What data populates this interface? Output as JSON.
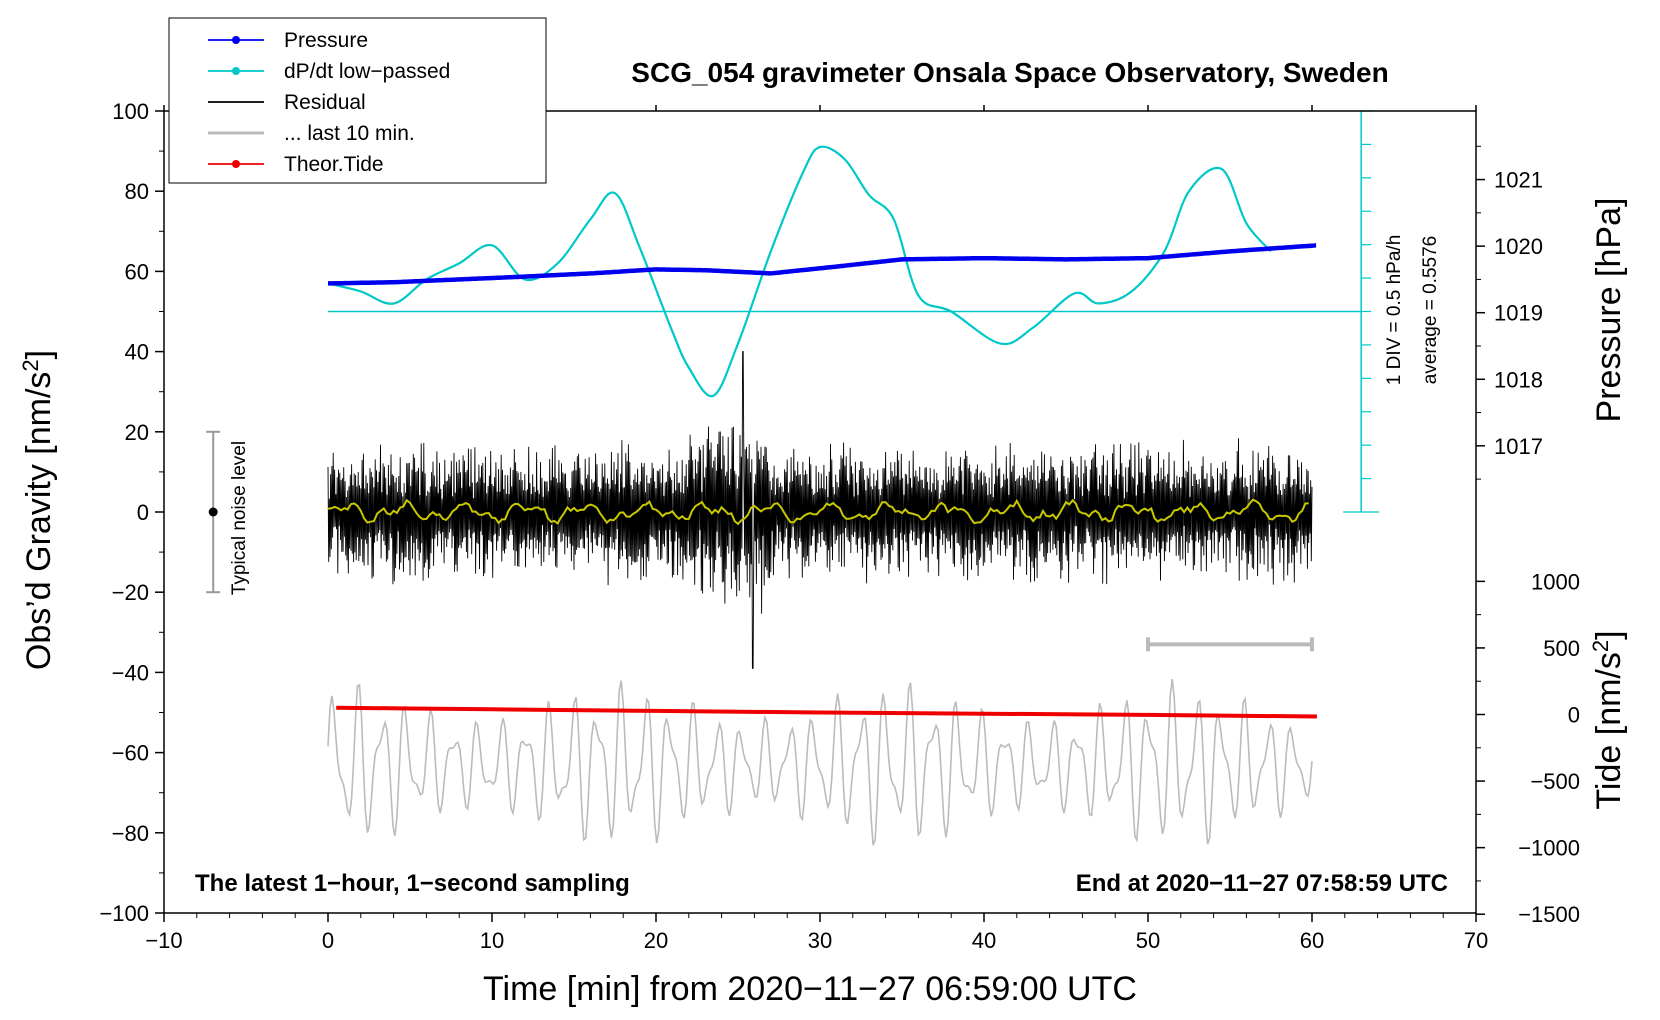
{
  "chart_data": {
    "type": "line",
    "title": "SCG_054 gravimeter Onsala Space Observatory, Sweden",
    "xlabel": "Time [min] from 2020−11−27 06:59:00 UTC",
    "ylabel": "Obs’d Gravity [nm/s",
    "ylabel_sup": "2",
    "ylabel_close": "]",
    "y2label": "Pressure [hPa]",
    "y3label": "Tide [nm/s",
    "y3label_sup": "2",
    "y3label_close": "]",
    "xlim": [
      -10,
      70
    ],
    "ylim": [
      -100,
      100
    ],
    "x_ticks": [
      -10,
      0,
      10,
      20,
      30,
      40,
      50,
      60,
      70
    ],
    "x_tick_labels": [
      "−10",
      "0",
      "10",
      "20",
      "30",
      "40",
      "50",
      "60",
      "70"
    ],
    "y_ticks": [
      -100,
      -80,
      -60,
      -40,
      -20,
      0,
      20,
      40,
      60,
      80,
      100
    ],
    "y_tick_labels": [
      "−100",
      "−80",
      "−60",
      "−40",
      "−20",
      "0",
      "20",
      "40",
      "60",
      "80",
      "100"
    ],
    "pressure_axis": {
      "ticks": [
        1017,
        1018,
        1019,
        1020,
        1021
      ],
      "gravity_at_1017": 16.5,
      "gravity_per_hPa": 16.6
    },
    "tide_axis": {
      "ticks": [
        -1500,
        -1000,
        -500,
        0,
        500,
        1000
      ],
      "tick_labels": [
        "−1500",
        "−1000",
        "−500",
        "0",
        "500",
        "1000"
      ],
      "gravity_at_0": -50.5,
      "gravity_per_1000": 33.2
    },
    "legend": [
      {
        "label": "Pressure",
        "color": "#0000ee",
        "marker": true
      },
      {
        "label": "dP/dt low−passed",
        "color": "#00c8c8",
        "marker": true
      },
      {
        "label": "Residual",
        "color": "#000000",
        "marker": false
      },
      {
        "label": "... last 10 min.",
        "color": "#bbbbbb",
        "marker": false
      },
      {
        "label": "Theor.Tide",
        "color": "#ee0000",
        "marker": true
      }
    ],
    "annotations": {
      "bottom_left": "The latest 1−hour, 1−second sampling",
      "bottom_right": "End at 2020−11−27 07:58:59 UTC",
      "noise_label": "Typical noise level",
      "dpdt_scale": "1 DIV = 0.5 hPa/h",
      "dpdt_average": "average = 0.5576"
    },
    "noise_bar": {
      "x": -7,
      "center": 0,
      "half_range": 20
    },
    "last10_bracket": {
      "x_start": 50,
      "x_end": 60,
      "y": -33
    },
    "dpdt_reference": {
      "x_start": 0,
      "x_end": 63,
      "y": 50
    },
    "dpdt_scale_axis": {
      "x": 63,
      "y_min": 0,
      "y_max": 100,
      "divisions": 12
    },
    "series": [
      {
        "name": "Pressure",
        "color": "#0000ee",
        "unit": "gravity-scaled",
        "x": [
          0,
          4,
          8,
          12,
          16,
          20,
          23,
          27,
          31,
          35,
          40,
          45,
          50,
          55,
          60.3
        ],
        "y": [
          57,
          57.3,
          58,
          58.7,
          59.5,
          60.5,
          60.3,
          59.5,
          61.2,
          63,
          63.3,
          63,
          63.3,
          65,
          66.5
        ]
      },
      {
        "name": "dP/dt low-passed",
        "color": "#00c8c8",
        "unit": "gravity-scaled",
        "x": [
          0,
          2,
          4,
          6,
          8,
          10,
          12,
          14,
          16,
          17.5,
          19,
          21,
          22,
          23.5,
          25,
          27,
          29,
          30,
          31.5,
          33,
          34.5,
          36,
          38,
          41,
          43,
          45.5,
          47,
          49,
          51,
          52.5,
          54.5,
          56,
          57.5
        ],
        "y": [
          57,
          55,
          52,
          58,
          62,
          66.5,
          58,
          62,
          73,
          79.5,
          66,
          45,
          36,
          29,
          42,
          65,
          85,
          91,
          88,
          79,
          73,
          54,
          50,
          42,
          46,
          54.5,
          52,
          55,
          65,
          80,
          85.5,
          72,
          65
        ]
      },
      {
        "name": "Residual",
        "color": "#000000",
        "x_range": [
          0,
          60
        ],
        "approx_amplitude": 15,
        "peak_max": 40,
        "peak_min": -39
      },
      {
        "name": "Residual low-passed",
        "color": "#c8c800",
        "x_range": [
          0,
          60
        ],
        "approx_amplitude": 3
      },
      {
        "name": "... last 10 min.",
        "color": "#bbbbbb",
        "x_range": [
          0,
          60
        ],
        "center": -63,
        "approx_amplitude": 18
      },
      {
        "name": "Theor.Tide",
        "color": "#ee0000",
        "unit": "gravity-scaled",
        "x": [
          0.5,
          5,
          10,
          20,
          30,
          40,
          50,
          60.3
        ],
        "y": [
          -48.8,
          -49,
          -49.2,
          -49.6,
          -50,
          -50.3,
          -50.6,
          -51
        ]
      }
    ]
  }
}
